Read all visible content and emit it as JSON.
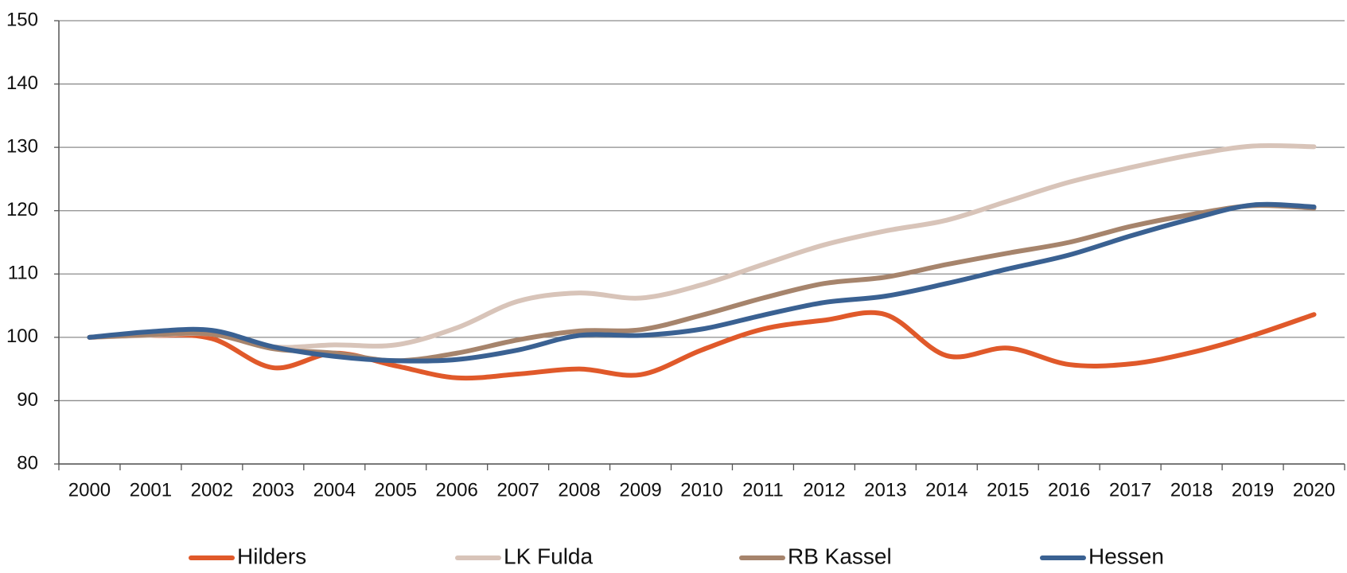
{
  "chart_data": {
    "type": "line",
    "categories": [
      "2000",
      "2001",
      "2002",
      "2003",
      "2004",
      "2005",
      "2006",
      "2007",
      "2008",
      "2009",
      "2010",
      "2011",
      "2012",
      "2013",
      "2014",
      "2015",
      "2016",
      "2017",
      "2018",
      "2019",
      "2020"
    ],
    "series": [
      {
        "name": "Hilders",
        "color": "#e0592a",
        "values": [
          100,
          100.3,
          99.8,
          95.2,
          97.5,
          95.5,
          93.6,
          94.2,
          95.0,
          94.1,
          98.0,
          101.3,
          102.7,
          103.6,
          97.1,
          98.3,
          95.7,
          95.8,
          97.6,
          100.3,
          103.6
        ]
      },
      {
        "name": "LK Fulda",
        "color": "#d8c4b9",
        "values": [
          100,
          100.3,
          100.5,
          98.5,
          98.8,
          98.8,
          101.5,
          105.7,
          107.0,
          106.2,
          108.3,
          111.5,
          114.6,
          116.8,
          118.5,
          121.5,
          124.5,
          126.8,
          128.8,
          130.2,
          130.1
        ]
      },
      {
        "name": "RB Kassel",
        "color": "#a6846c",
        "values": [
          100,
          100.4,
          100.5,
          98.2,
          97.5,
          96.3,
          97.5,
          99.6,
          101.0,
          101.2,
          103.5,
          106.2,
          108.5,
          109.5,
          111.5,
          113.3,
          115.0,
          117.5,
          119.4,
          120.8,
          120.4
        ]
      },
      {
        "name": "Hessen",
        "color": "#3a6192",
        "values": [
          100,
          100.9,
          101.1,
          98.5,
          97.0,
          96.3,
          96.5,
          98.0,
          100.3,
          100.3,
          101.3,
          103.5,
          105.5,
          106.5,
          108.5,
          110.8,
          113.0,
          116.0,
          118.7,
          120.9,
          120.6
        ]
      }
    ],
    "ylim": [
      80,
      150
    ],
    "yticks": [
      80,
      90,
      100,
      110,
      120,
      130,
      140,
      150
    ],
    "grid": true
  }
}
